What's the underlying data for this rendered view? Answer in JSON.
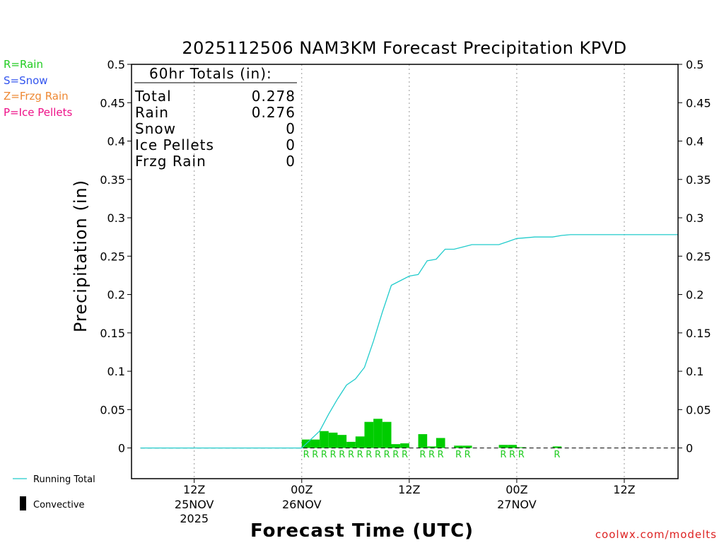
{
  "legend": {
    "rain": {
      "label": "R=Rain",
      "color": "#22cc22"
    },
    "snow": {
      "label": "S=Snow",
      "color": "#3355ee"
    },
    "frzg": {
      "label": "Z=Frzg Rain",
      "color": "#ee8833"
    },
    "ice": {
      "label": "P=Ice Pellets",
      "color": "#ee1188"
    }
  },
  "footer_legend": {
    "running_total": "Running Total",
    "convective": "Convective"
  },
  "credit": "coolwx.com/modelts",
  "totals_box": {
    "header": "60hr Totals (in):",
    "rows": [
      {
        "label": "Total",
        "value": "0.278"
      },
      {
        "label": "Rain",
        "value": "0.276"
      },
      {
        "label": "Snow",
        "value": "0"
      },
      {
        "label": "Ice Pellets",
        "value": "0"
      },
      {
        "label": "Frzg Rain",
        "value": "0"
      }
    ]
  },
  "chart_data": {
    "type": "bar",
    "title": "2025112506 NAM3KM Forecast Precipitation KPVD",
    "xlabel": "Forecast Time (UTC)",
    "ylabel": "Precipitation (in)",
    "ylim": [
      -0.04,
      0.5
    ],
    "yticks": [
      0,
      0.05,
      0.1,
      0.15,
      0.2,
      0.25,
      0.3,
      0.35,
      0.4,
      0.45,
      0.5
    ],
    "ytick_labels": [
      "0",
      "0.05",
      "0.1",
      "0.15",
      "0.2",
      "0.25",
      "0.3",
      "0.35",
      "0.4",
      "0.45",
      "0.5"
    ],
    "x_unit": "forecast hour",
    "xlim": [
      -1,
      60
    ],
    "xticks": [
      {
        "hour": 6,
        "label": "12Z",
        "date": "25NOV",
        "year": "2025"
      },
      {
        "hour": 18,
        "label": "00Z",
        "date": "26NOV",
        "year": ""
      },
      {
        "hour": 30,
        "label": "12Z",
        "date": "",
        "year": ""
      },
      {
        "hour": 42,
        "label": "00Z",
        "date": "27NOV",
        "year": ""
      },
      {
        "hour": 54,
        "label": "12Z",
        "date": "",
        "year": ""
      }
    ],
    "bar_color": "#00cc00",
    "line_color": "#22cccc",
    "hourly_precip": [
      {
        "hour": 19,
        "value": 0.011,
        "ptype": "R"
      },
      {
        "hour": 20,
        "value": 0.011,
        "ptype": "R"
      },
      {
        "hour": 21,
        "value": 0.022,
        "ptype": "R"
      },
      {
        "hour": 22,
        "value": 0.02,
        "ptype": "R"
      },
      {
        "hour": 23,
        "value": 0.017,
        "ptype": "R"
      },
      {
        "hour": 24,
        "value": 0.008,
        "ptype": "R"
      },
      {
        "hour": 25,
        "value": 0.015,
        "ptype": "R"
      },
      {
        "hour": 26,
        "value": 0.034,
        "ptype": "R"
      },
      {
        "hour": 27,
        "value": 0.038,
        "ptype": "R"
      },
      {
        "hour": 28,
        "value": 0.034,
        "ptype": "R"
      },
      {
        "hour": 29,
        "value": 0.005,
        "ptype": "R"
      },
      {
        "hour": 30,
        "value": 0.006,
        "ptype": "R"
      },
      {
        "hour": 32,
        "value": 0.018,
        "ptype": "R"
      },
      {
        "hour": 33,
        "value": 0.002,
        "ptype": "R"
      },
      {
        "hour": 34,
        "value": 0.013,
        "ptype": "R"
      },
      {
        "hour": 36,
        "value": 0.003,
        "ptype": "R"
      },
      {
        "hour": 37,
        "value": 0.003,
        "ptype": "R"
      },
      {
        "hour": 41,
        "value": 0.004,
        "ptype": "R"
      },
      {
        "hour": 42,
        "value": 0.004,
        "ptype": "R"
      },
      {
        "hour": 43,
        "value": 0.001,
        "ptype": "R"
      },
      {
        "hour": 47,
        "value": 0.002,
        "ptype": "R"
      }
    ],
    "running_total": {
      "hours": [
        0,
        18,
        19,
        20,
        21,
        22,
        23,
        24,
        25,
        26,
        27,
        28,
        29,
        30,
        31,
        32,
        33,
        34,
        35,
        36,
        37,
        38,
        39,
        40,
        41,
        42,
        43,
        44,
        45,
        46,
        47,
        48,
        60
      ],
      "values": [
        0,
        0,
        0.011,
        0.022,
        0.044,
        0.064,
        0.082,
        0.09,
        0.105,
        0.139,
        0.177,
        0.212,
        0.218,
        0.224,
        0.226,
        0.244,
        0.246,
        0.259,
        0.259,
        0.262,
        0.265,
        0.265,
        0.265,
        0.265,
        0.269,
        0.273,
        0.274,
        0.275,
        0.275,
        0.275,
        0.277,
        0.278,
        0.278
      ]
    }
  }
}
